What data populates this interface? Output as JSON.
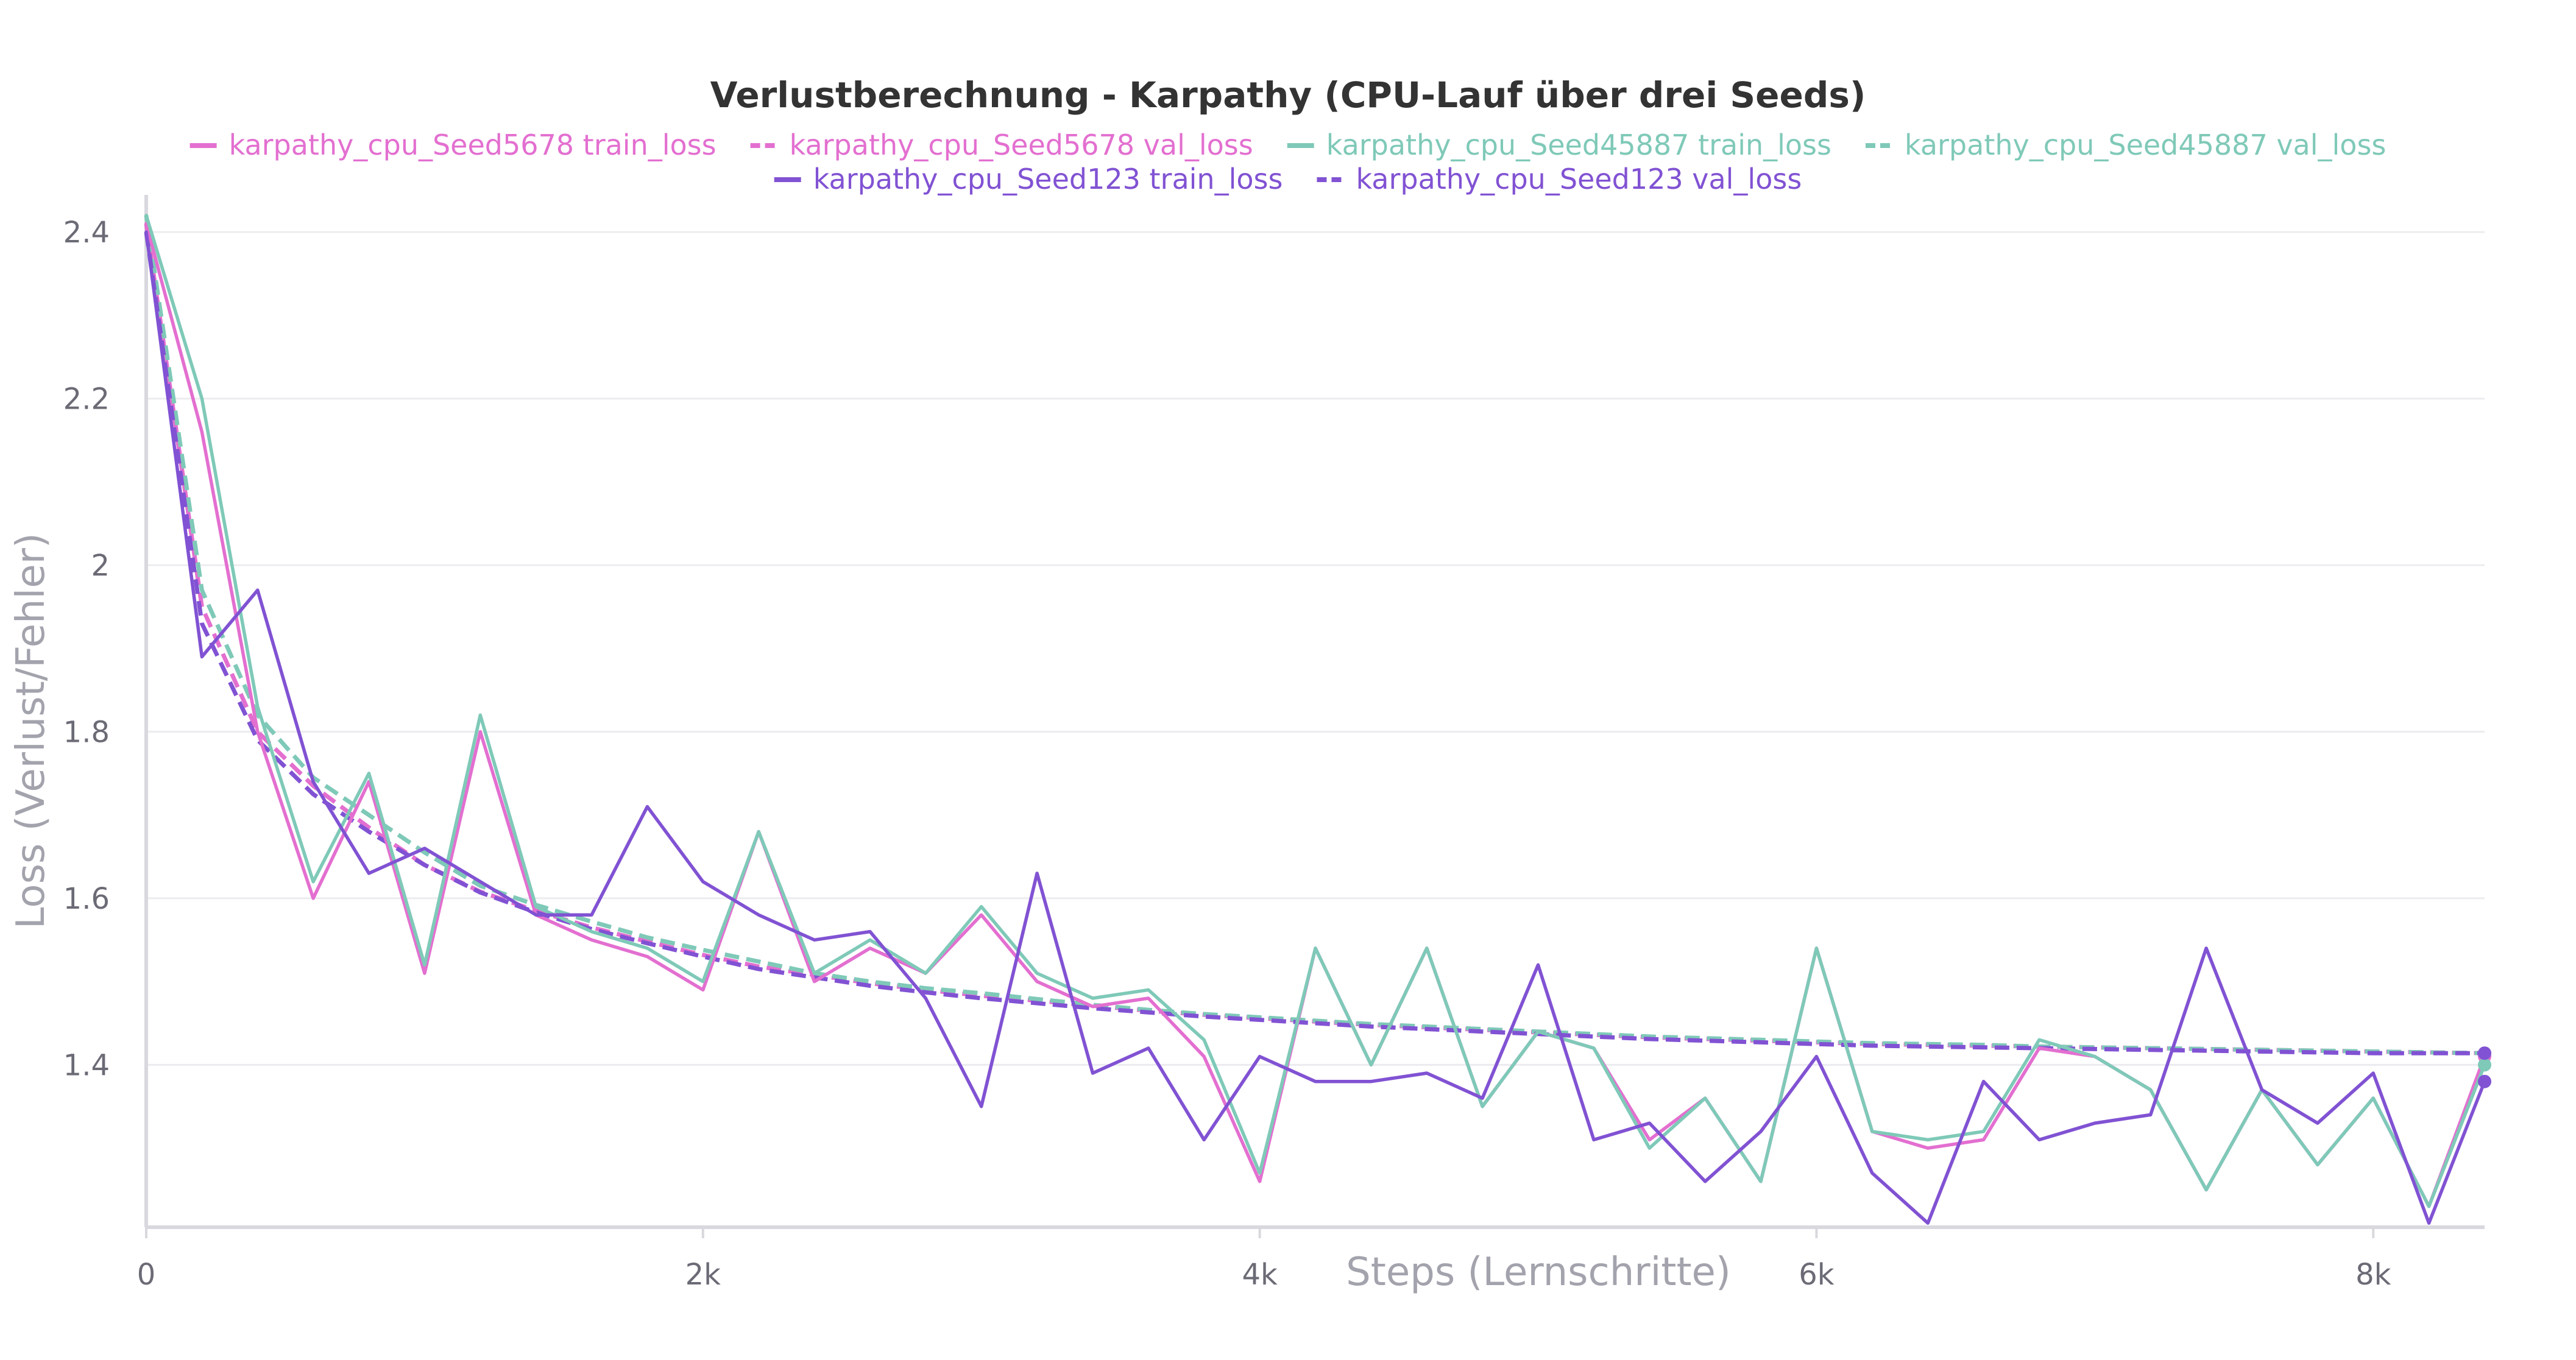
{
  "chart_data": {
    "type": "line",
    "title": "Verlustberechnung - Karpathy (CPU-Lauf über drei Seeds)",
    "xlabel": "Steps (Lernschritte)",
    "ylabel": "Loss (Verlust/Fehler)",
    "xlim": [
      0,
      8400
    ],
    "ylim": [
      1.205,
      2.43
    ],
    "x_ticks": [
      0,
      2000,
      4000,
      6000,
      8000
    ],
    "x_tick_labels": [
      "0",
      "2k",
      "4k",
      "6k",
      "8k"
    ],
    "y_ticks": [
      1.4,
      1.6,
      1.8,
      2.0,
      2.2,
      2.4
    ],
    "y_tick_labels": [
      "1.4",
      "1.6",
      "1.8",
      "2",
      "2.2",
      "2.4"
    ],
    "grid": true,
    "legend_position": "top-center",
    "colors": {
      "seed5678": "#e36fd0",
      "seed45887": "#7fc9b8",
      "seed123": "#8152d3",
      "grid": "#ececf0",
      "axis": "#d8d8de",
      "tick_label": "#6b6b76",
      "axis_label": "#9a9aa4",
      "title": "#333333"
    },
    "series": [
      {
        "name": "karpathy_cpu_Seed5678 train_loss",
        "color": "#e36fd0",
        "dash": false,
        "x": [
          0,
          200,
          400,
          600,
          800,
          1000,
          1200,
          1400,
          1600,
          1800,
          2000,
          2200,
          2400,
          2600,
          2800,
          3000,
          3200,
          3400,
          3600,
          3800,
          4000,
          4200,
          4400,
          4600,
          4800,
          5000,
          5200,
          5400,
          5600,
          5800,
          6000,
          6200,
          6400,
          6600,
          6800,
          7000,
          7200,
          7400,
          7600,
          7800,
          8000,
          8200,
          8400
        ],
        "y": [
          2.41,
          2.16,
          1.8,
          1.6,
          1.74,
          1.51,
          1.8,
          1.58,
          1.55,
          1.53,
          1.49,
          1.68,
          1.5,
          1.54,
          1.51,
          1.58,
          1.5,
          1.47,
          1.48,
          1.41,
          1.26,
          1.54,
          1.4,
          1.54,
          1.35,
          1.44,
          1.42,
          1.31,
          1.36,
          1.26,
          1.54,
          1.32,
          1.3,
          1.31,
          1.42,
          1.41,
          1.37,
          1.25,
          1.37,
          1.28,
          1.36,
          1.23,
          1.41
        ]
      },
      {
        "name": "karpathy_cpu_Seed5678 val_loss",
        "color": "#e36fd0",
        "dash": true,
        "x": [
          0,
          200,
          400,
          600,
          800,
          1000,
          1200,
          1400,
          1600,
          1800,
          2000,
          2200,
          2400,
          2600,
          2800,
          3000,
          3200,
          3400,
          3600,
          3800,
          4000,
          4200,
          4400,
          4600,
          4800,
          5000,
          5200,
          5400,
          5600,
          5800,
          6000,
          6200,
          6400,
          6600,
          6800,
          7000,
          7200,
          7400,
          7600,
          7800,
          8000,
          8200,
          8400
        ],
        "y": [
          2.41,
          1.95,
          1.8,
          1.735,
          1.685,
          1.64,
          1.608,
          1.585,
          1.565,
          1.548,
          1.532,
          1.518,
          1.508,
          1.498,
          1.49,
          1.483,
          1.477,
          1.471,
          1.465,
          1.46,
          1.456,
          1.452,
          1.448,
          1.445,
          1.442,
          1.439,
          1.436,
          1.433,
          1.431,
          1.429,
          1.427,
          1.425,
          1.424,
          1.423,
          1.422,
          1.421,
          1.42,
          1.419,
          1.418,
          1.417,
          1.416,
          1.415,
          1.414
        ]
      },
      {
        "name": "karpathy_cpu_Seed45887 train_loss",
        "color": "#7fc9b8",
        "dash": false,
        "x": [
          0,
          200,
          400,
          600,
          800,
          1000,
          1200,
          1400,
          1600,
          1800,
          2000,
          2200,
          2400,
          2600,
          2800,
          3000,
          3200,
          3400,
          3600,
          3800,
          4000,
          4200,
          4400,
          4600,
          4800,
          5000,
          5200,
          5400,
          5600,
          5800,
          6000,
          6200,
          6400,
          6600,
          6800,
          7000,
          7200,
          7400,
          7600,
          7800,
          8000,
          8200,
          8400
        ],
        "y": [
          2.42,
          2.2,
          1.83,
          1.62,
          1.75,
          1.52,
          1.82,
          1.59,
          1.56,
          1.54,
          1.5,
          1.68,
          1.51,
          1.55,
          1.51,
          1.59,
          1.51,
          1.48,
          1.49,
          1.43,
          1.27,
          1.54,
          1.4,
          1.54,
          1.35,
          1.44,
          1.42,
          1.3,
          1.36,
          1.26,
          1.54,
          1.32,
          1.31,
          1.32,
          1.43,
          1.41,
          1.37,
          1.25,
          1.37,
          1.28,
          1.36,
          1.23,
          1.4
        ]
      },
      {
        "name": "karpathy_cpu_Seed45887 val_loss",
        "color": "#7fc9b8",
        "dash": true,
        "x": [
          0,
          200,
          400,
          600,
          800,
          1000,
          1200,
          1400,
          1600,
          1800,
          2000,
          2200,
          2400,
          2600,
          2800,
          3000,
          3200,
          3400,
          3600,
          3800,
          4000,
          4200,
          4400,
          4600,
          4800,
          5000,
          5200,
          5400,
          5600,
          5800,
          6000,
          6200,
          6400,
          6600,
          6800,
          7000,
          7200,
          7400,
          7600,
          7800,
          8000,
          8200,
          8400
        ],
        "y": [
          2.42,
          1.97,
          1.82,
          1.745,
          1.7,
          1.655,
          1.615,
          1.592,
          1.572,
          1.553,
          1.538,
          1.524,
          1.51,
          1.5,
          1.492,
          1.486,
          1.479,
          1.472,
          1.466,
          1.461,
          1.457,
          1.453,
          1.449,
          1.446,
          1.443,
          1.44,
          1.437,
          1.434,
          1.432,
          1.43,
          1.428,
          1.426,
          1.425,
          1.424,
          1.422,
          1.421,
          1.42,
          1.419,
          1.418,
          1.417,
          1.416,
          1.415,
          1.414
        ]
      },
      {
        "name": "karpathy_cpu_Seed123 train_loss",
        "color": "#8152d3",
        "dash": false,
        "x": [
          0,
          200,
          400,
          600,
          800,
          1000,
          1200,
          1400,
          1600,
          1800,
          2000,
          2200,
          2400,
          2600,
          2800,
          3000,
          3200,
          3400,
          3600,
          3800,
          4000,
          4200,
          4400,
          4600,
          4800,
          5000,
          5200,
          5400,
          5600,
          5800,
          6000,
          6200,
          6400,
          6600,
          6800,
          7000,
          7200,
          7400,
          7600,
          7800,
          8000,
          8200,
          8400
        ],
        "y": [
          2.4,
          1.89,
          1.97,
          1.74,
          1.63,
          1.66,
          1.62,
          1.58,
          1.58,
          1.71,
          1.62,
          1.58,
          1.55,
          1.56,
          1.48,
          1.35,
          1.63,
          1.39,
          1.42,
          1.31,
          1.41,
          1.38,
          1.38,
          1.39,
          1.36,
          1.52,
          1.31,
          1.33,
          1.26,
          1.32,
          1.41,
          1.27,
          1.21,
          1.38,
          1.31,
          1.33,
          1.34,
          1.54,
          1.37,
          1.33,
          1.39,
          1.21,
          1.38
        ]
      },
      {
        "name": "karpathy_cpu_Seed123 val_loss",
        "color": "#8152d3",
        "dash": true,
        "x": [
          0,
          200,
          400,
          600,
          800,
          1000,
          1200,
          1400,
          1600,
          1800,
          2000,
          2200,
          2400,
          2600,
          2800,
          3000,
          3200,
          3400,
          3600,
          3800,
          4000,
          4200,
          4400,
          4600,
          4800,
          5000,
          5200,
          5400,
          5600,
          5800,
          6000,
          6200,
          6400,
          6600,
          6800,
          7000,
          7200,
          7400,
          7600,
          7800,
          8000,
          8200,
          8400
        ],
        "y": [
          2.4,
          1.93,
          1.79,
          1.725,
          1.68,
          1.64,
          1.607,
          1.583,
          1.563,
          1.546,
          1.53,
          1.515,
          1.505,
          1.495,
          1.487,
          1.48,
          1.474,
          1.468,
          1.463,
          1.458,
          1.454,
          1.45,
          1.446,
          1.443,
          1.44,
          1.437,
          1.434,
          1.431,
          1.429,
          1.427,
          1.425,
          1.423,
          1.422,
          1.421,
          1.42,
          1.419,
          1.418,
          1.417,
          1.416,
          1.415,
          1.414,
          1.414,
          1.414
        ]
      }
    ]
  }
}
